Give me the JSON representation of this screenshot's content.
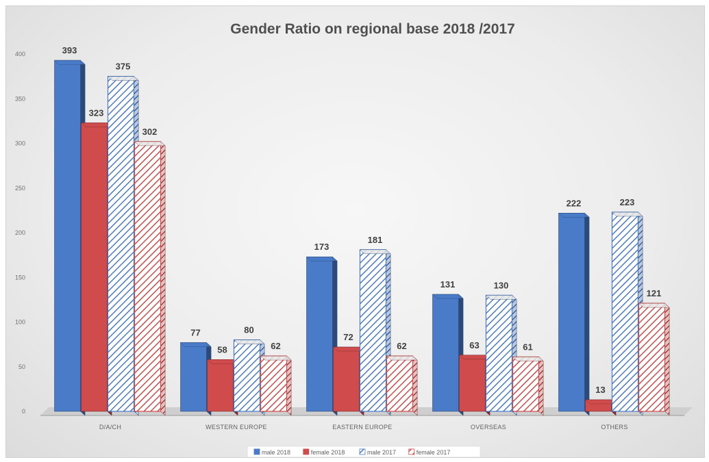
{
  "chart_data": {
    "type": "bar",
    "title": "Gender Ratio on regional base 2018 /2017",
    "categories": [
      "D/A/CH",
      "WESTERN EUROPE",
      "EASTERN EUROPE",
      "OVERSEAS",
      "OTHERS"
    ],
    "series": [
      {
        "name": "male 2018",
        "values": [
          393,
          77,
          173,
          131,
          222
        ],
        "color": "#4a7bc8",
        "pattern": "solid"
      },
      {
        "name": "female 2018",
        "values": [
          323,
          58,
          72,
          63,
          13
        ],
        "color": "#d04b4b",
        "pattern": "solid"
      },
      {
        "name": "male 2017",
        "values": [
          375,
          80,
          181,
          130,
          223
        ],
        "color": "#4a7bc8",
        "pattern": "hatch"
      },
      {
        "name": "female 2017",
        "values": [
          302,
          62,
          62,
          61,
          121
        ],
        "color": "#d04b4b",
        "pattern": "hatch"
      }
    ],
    "y_ticks": [
      "0",
      "50",
      "100",
      "150",
      "200",
      "250",
      "300",
      "350",
      "400"
    ],
    "ylim": [
      0,
      400
    ],
    "xlabel": "",
    "ylabel": "",
    "legend_position": "bottom",
    "grid": false,
    "style": "3d-clustered-column"
  }
}
